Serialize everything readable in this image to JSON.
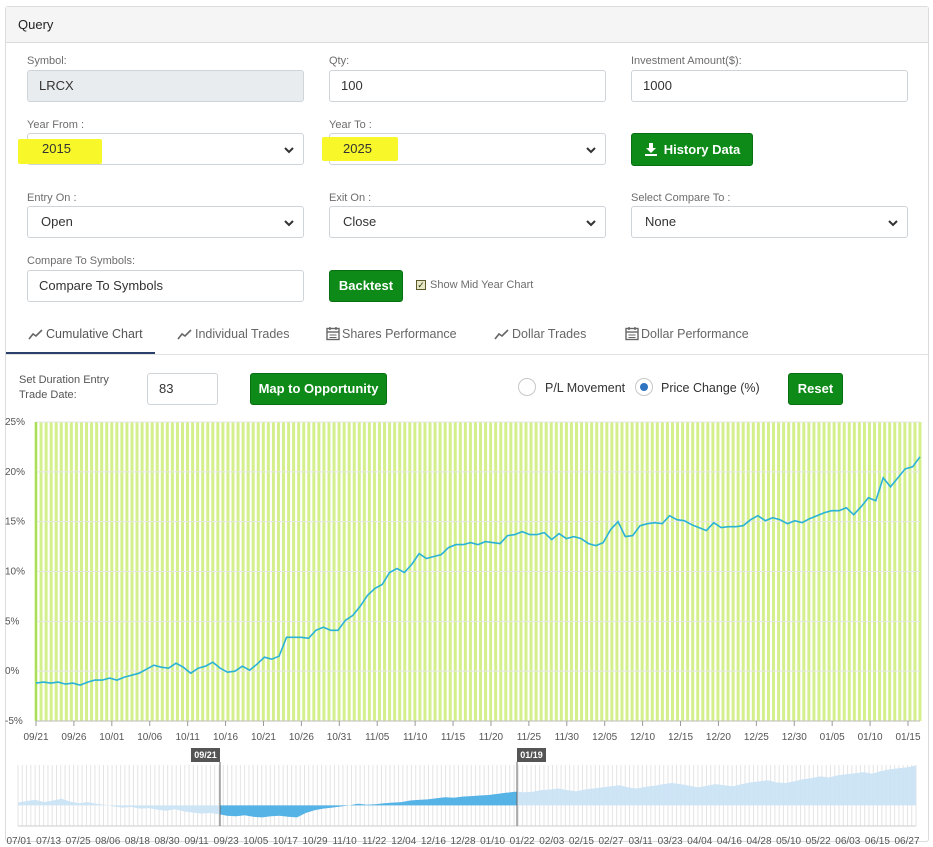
{
  "panel": {
    "title": "Query"
  },
  "form": {
    "symbol": {
      "label": "Symbol:",
      "value": "LRCX"
    },
    "qty": {
      "label": "Qty:",
      "value": "100"
    },
    "investment": {
      "label": "Investment Amount($):",
      "value": "1000"
    },
    "year_from": {
      "label": "Year From :",
      "value": "2015"
    },
    "year_to": {
      "label": "Year To :",
      "value": "2025"
    },
    "history_button": "History Data",
    "entry_on": {
      "label": "Entry On :",
      "value": "Open"
    },
    "exit_on": {
      "label": "Exit On :",
      "value": "Close"
    },
    "compare_to": {
      "label": "Select Compare To :",
      "value": "None"
    },
    "compare_symbols": {
      "label": "Compare To Symbols:",
      "placeholder": "Compare To Symbols"
    },
    "backtest_button": "Backtest",
    "show_mid_year": {
      "label": "Show Mid Year Chart",
      "checked": true
    }
  },
  "tabs": [
    {
      "label": "Cumulative Chart",
      "icon": "line-chart-icon",
      "active": true
    },
    {
      "label": "Individual Trades",
      "icon": "line-chart-icon",
      "active": false
    },
    {
      "label": "Shares Performance",
      "icon": "calendar-icon",
      "active": false
    },
    {
      "label": "Dollar Trades",
      "icon": "line-chart-icon",
      "active": false
    },
    {
      "label": "Dollar Performance",
      "icon": "calendar-icon",
      "active": false
    }
  ],
  "controls": {
    "duration_label_line1": "Set Duration Entry",
    "duration_label_line2": "Trade Date:",
    "duration_value": "83",
    "map_button": "Map to Opportunity",
    "radio_pl": "P/L Movement",
    "radio_price": "Price Change (%)",
    "radio_selected": "Price Change (%)",
    "reset_button": "Reset"
  },
  "colors": {
    "accent_green": "#0d8a18",
    "line": "#2ab3d6",
    "stripe": "#d4f08c",
    "highlight": "#f7f72a",
    "navigator_fill": "#c9e2f5",
    "navigator_selected": "#55b3e6"
  },
  "chart_data": {
    "type": "line",
    "ylim": [
      -5,
      25
    ],
    "y_ticks": [
      "-5%",
      "0%",
      "5%",
      "10%",
      "15%",
      "20%",
      "25%"
    ],
    "y_tick_values": [
      -5,
      0,
      5,
      10,
      15,
      20,
      25
    ],
    "x_tick_labels": [
      "09/21",
      "09/26",
      "10/01",
      "10/06",
      "10/11",
      "10/16",
      "10/21",
      "10/26",
      "10/31",
      "11/05",
      "11/10",
      "11/15",
      "11/20",
      "11/25",
      "11/30",
      "12/05",
      "12/10",
      "12/15",
      "12/20",
      "12/25",
      "12/30",
      "01/05",
      "01/10",
      "01/15"
    ],
    "series": [
      {
        "values": [
          -1.2,
          -1.1,
          -1.2,
          -1.1,
          -1.3,
          -1.2,
          -1.4,
          -1.1,
          -0.9,
          -0.9,
          -0.7,
          -0.9,
          -0.6,
          -0.4,
          -0.2,
          0.2,
          0.6,
          0.4,
          0.3,
          0.8,
          0.4,
          -0.2,
          0.3,
          0.5,
          0.9,
          0.3,
          -0.1,
          0.0,
          0.5,
          0.1,
          0.7,
          1.4,
          1.2,
          1.5,
          3.4,
          3.4,
          3.4,
          3.3,
          4.1,
          4.4,
          4.1,
          4.1,
          5.1,
          5.6,
          6.5,
          7.6,
          8.3,
          8.7,
          9.9,
          10.3,
          9.9,
          10.7,
          11.8,
          11.3,
          11.5,
          11.7,
          12.4,
          12.7,
          12.7,
          12.9,
          12.7,
          13.0,
          12.9,
          12.8,
          13.6,
          13.7,
          14.0,
          13.7,
          13.7,
          13.9,
          13.2,
          13.8,
          13.3,
          13.5,
          13.3,
          12.8,
          12.6,
          12.9,
          14.2,
          15.0,
          13.5,
          13.6,
          14.6,
          14.8,
          14.9,
          14.8,
          15.6,
          15.2,
          15.1,
          14.7,
          14.4,
          14.1,
          14.9,
          14.4,
          14.5,
          14.5,
          14.6,
          15.2,
          15.6,
          15.1,
          15.4,
          15.2,
          14.8,
          15.1,
          14.9,
          15.3,
          15.6,
          15.9,
          16.1,
          16.1,
          16.4,
          15.7,
          16.5,
          17.4,
          17.1,
          19.4,
          18.5,
          19.4,
          20.3,
          20.5,
          21.5
        ]
      }
    ],
    "navigator": {
      "x_tick_labels": [
        "07/01",
        "07/13",
        "07/25",
        "08/06",
        "08/18",
        "08/30",
        "09/11",
        "09/23",
        "10/05",
        "10/17",
        "10/29",
        "11/10",
        "11/22",
        "12/04",
        "12/16",
        "12/28",
        "01/10",
        "01/22",
        "02/03",
        "02/15",
        "02/27",
        "03/11",
        "03/23",
        "04/04",
        "04/16",
        "04/28",
        "05/10",
        "05/22",
        "06/03",
        "06/15",
        "06/27"
      ],
      "range_start_label": "09/21",
      "range_end_label": "01/19",
      "values": [
        0.5,
        0.8,
        1.0,
        0.6,
        0.9,
        1.2,
        0.7,
        0.4,
        0.6,
        0.3,
        0.1,
        -0.2,
        -0.4,
        -0.3,
        -0.6,
        -0.5,
        -0.8,
        -1.0,
        -0.7,
        -1.1,
        -1.3,
        -1.5,
        -1.4,
        -1.6,
        -1.9,
        -2.0,
        -1.8,
        -2.1,
        -2.2,
        -2.0,
        -1.9,
        -2.1,
        -2.2,
        -1.4,
        -0.9,
        -0.6,
        -0.4,
        -0.2,
        0.0,
        0.3,
        0.1,
        0.2,
        0.4,
        0.5,
        0.6,
        0.9,
        1.0,
        1.1,
        1.3,
        1.5,
        1.4,
        1.6,
        1.7,
        1.8,
        1.9,
        2.1,
        2.3,
        2.5,
        2.4,
        2.5,
        2.8,
        2.9,
        3.1,
        2.8,
        2.6,
        2.9,
        3.1,
        3.3,
        3.5,
        3.7,
        3.3,
        3.1,
        3.4,
        3.6,
        3.9,
        4.1,
        3.9,
        3.6,
        3.3,
        3.6,
        3.9,
        3.7,
        3.5,
        3.9,
        4.2,
        4.4,
        4.6,
        4.2,
        4.1,
        4.4,
        4.8,
        5.0,
        5.3,
        5.1,
        5.5,
        5.7,
        5.9,
        6.1,
        5.8,
        6.3,
        6.6,
        6.8,
        7.0,
        7.3
      ]
    }
  }
}
